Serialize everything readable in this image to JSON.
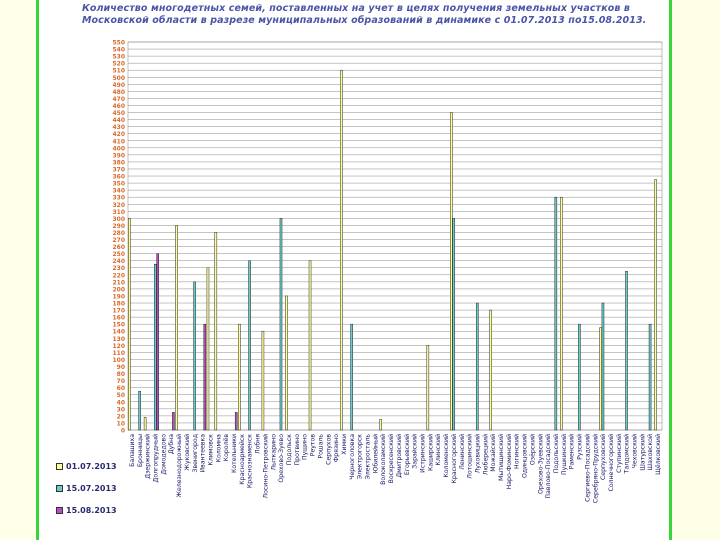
{
  "title_line1": "Количество многодетных семей, поставленных на учет в целях получения земельных участков в",
  "title_line2": "Московской области в разрезе муниципальных образований в динамике с 01.07.2013 по15.08.2013.",
  "chart_data": {
    "type": "bar",
    "title": "Количество многодетных семей, поставленных на учет в целях получения земельных участков в Московской области в разрезе муниципальных образований в динамике с 01.07.2013 по15.08.2013.",
    "xlabel": "",
    "ylabel": "",
    "ylim": [
      0,
      550
    ],
    "ytick_step": 10,
    "grid": true,
    "legend_position": "bottom-left",
    "categories": [
      "Балашиха",
      "Бронницы",
      "Дзержинский",
      "Долгопрудный",
      "Домодедово",
      "Дубна",
      "Железнодорожный",
      "Жуковский",
      "Звенигород",
      "Ивантеевка",
      "Климовск",
      "Коломна",
      "Королёв",
      "Котельники",
      "Красноармейск",
      "Краснознаменск",
      "Лобня",
      "Лосино-Петровский",
      "Лыткарино",
      "Орехово-Зуево",
      "Подольск",
      "Протвино",
      "Пущино",
      "Реутов",
      "Рошаль",
      "Серпухов",
      "Фрязино",
      "Химки",
      "Черноголовка",
      "Электрогорск",
      "Электросталь",
      "Юбилейный",
      "Волоколамский",
      "Воскресенский",
      "Дмитровский",
      "Егорьевский",
      "Зарайский",
      "Истринский",
      "Каширский",
      "Клинский",
      "Коломенский",
      "Красногорский",
      "Ленинский",
      "Лотошинский",
      "Луховицкий",
      "Люберецкий",
      "Можайский",
      "Мытищинский",
      "Наро-Фоминский",
      "Ногинский",
      "Одинцовский",
      "Озёрский",
      "Орехово-Зуевский",
      "Павлово-Посадский",
      "Подольский",
      "Пушкинский",
      "Раменский",
      "Рузский",
      "Сергиево-Посадский",
      "Серебряно-Прудский",
      "Серпуховский",
      "Солнечногорский",
      "Ступинский",
      "Талдомский",
      "Чеховский",
      "Шатурский",
      "Шаховской",
      "Щёлковский"
    ],
    "series": [
      {
        "name": "01.07.2013",
        "color": "#ffff99",
        "values": [
          300,
          0,
          18,
          0,
          0,
          0,
          290,
          0,
          0,
          0,
          230,
          280,
          0,
          0,
          150,
          0,
          0,
          140,
          0,
          0,
          190,
          0,
          0,
          240,
          0,
          0,
          0,
          510,
          0,
          0,
          0,
          0,
          15,
          0,
          0,
          0,
          0,
          0,
          120,
          0,
          0,
          450,
          0,
          0,
          0,
          0,
          170,
          0,
          0,
          0,
          0,
          0,
          0,
          0,
          0,
          330,
          0,
          0,
          0,
          0,
          145,
          0,
          0,
          0,
          0,
          0,
          0,
          355
        ]
      },
      {
        "name": "15.07.2013",
        "color": "#66cccc",
        "values": [
          0,
          55,
          0,
          235,
          0,
          0,
          0,
          0,
          210,
          0,
          0,
          0,
          0,
          0,
          0,
          240,
          0,
          0,
          0,
          300,
          0,
          0,
          0,
          0,
          0,
          0,
          0,
          0,
          150,
          0,
          0,
          0,
          0,
          0,
          0,
          0,
          0,
          0,
          0,
          0,
          0,
          300,
          0,
          0,
          180,
          0,
          0,
          0,
          0,
          0,
          0,
          0,
          0,
          0,
          330,
          0,
          0,
          150,
          0,
          0,
          180,
          0,
          0,
          225,
          0,
          0,
          150,
          0
        ]
      },
      {
        "name": "15.08.2013",
        "color": "#4a2b8c",
        "values": [
          0,
          0,
          0,
          250,
          0,
          25,
          0,
          0,
          0,
          150,
          0,
          0,
          0,
          25,
          0,
          0,
          0,
          0,
          0,
          0,
          0,
          0,
          0,
          0,
          0,
          0,
          0,
          0,
          0,
          0,
          0,
          0,
          0,
          0,
          0,
          0,
          0,
          0,
          0,
          0,
          0,
          0,
          0,
          0,
          0,
          0,
          0,
          0,
          0,
          0,
          0,
          0,
          0,
          0,
          0,
          0,
          0,
          0,
          0,
          0,
          0,
          0,
          0,
          0,
          0,
          0,
          0,
          0
        ]
      }
    ]
  },
  "legend": [
    "01.07.2013",
    "15.07.2013",
    "15.08.2013"
  ]
}
